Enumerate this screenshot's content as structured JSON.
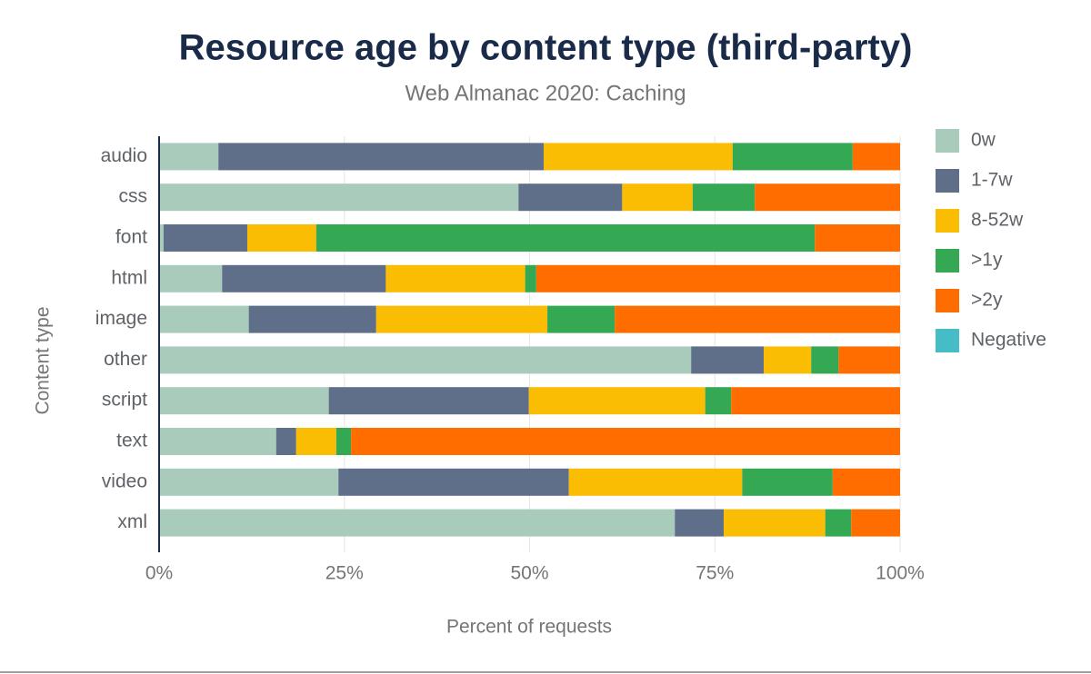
{
  "chart_data": {
    "type": "bar",
    "orientation": "horizontal",
    "stacked": true,
    "title": "Resource age by content type (third-party)",
    "subtitle": "Web Almanac 2020: Caching",
    "x_label": "Percent of requests",
    "y_label": "Content type",
    "categories": [
      "audio",
      "css",
      "font",
      "html",
      "image",
      "other",
      "script",
      "text",
      "video",
      "xml"
    ],
    "series": [
      {
        "name": "0w",
        "color": "#a8cbbb",
        "values": [
          8.0,
          48.5,
          0.6,
          8.5,
          12.1,
          71.8,
          22.9,
          15.8,
          24.2,
          69.6
        ]
      },
      {
        "name": "1-7w",
        "color": "#5f6f8a",
        "values": [
          43.9,
          14.0,
          11.3,
          22.1,
          17.2,
          9.8,
          27.0,
          2.7,
          31.1,
          6.6
        ]
      },
      {
        "name": "8-52w",
        "color": "#fbbc04",
        "values": [
          25.5,
          9.5,
          9.3,
          18.8,
          23.1,
          6.4,
          23.8,
          5.4,
          23.4,
          13.7
        ]
      },
      {
        "name": ">1y",
        "color": "#34a853",
        "values": [
          16.2,
          8.4,
          67.3,
          1.5,
          9.1,
          3.7,
          3.5,
          2.0,
          12.2,
          3.5
        ]
      },
      {
        "name": ">2y",
        "color": "#ff6d01",
        "values": [
          6.4,
          19.6,
          11.5,
          49.1,
          38.5,
          8.3,
          22.8,
          74.1,
          9.1,
          6.6
        ]
      },
      {
        "name": "Negative",
        "color": "#46bdc6",
        "values": [
          0,
          0,
          0,
          0,
          0,
          0,
          0,
          0,
          0,
          0
        ]
      }
    ],
    "xlim": [
      0,
      100
    ],
    "xticks": [
      {
        "value": 0,
        "label": "0%"
      },
      {
        "value": 25,
        "label": "25%"
      },
      {
        "value": 50,
        "label": "50%"
      },
      {
        "value": 75,
        "label": "75%"
      },
      {
        "value": 100,
        "label": "100%"
      }
    ],
    "grid": true,
    "legend": "right"
  }
}
